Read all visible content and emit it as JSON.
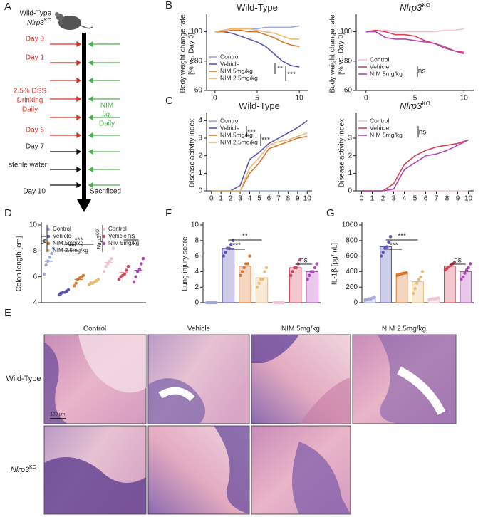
{
  "schematic": {
    "panel": "A",
    "strain": "Wild-Type",
    "strain_ko": "Nlrp3",
    "strain_ko_sup": "KO",
    "steps": [
      "Day 0",
      "Day 1",
      "2.5% DSS",
      "Drinking",
      "Daily",
      "Day 6",
      "Day 7",
      "sterile water",
      "Day 10"
    ],
    "treatment": [
      "NIM",
      "i.g.",
      "Daily"
    ],
    "endpoint": "Sacrificed"
  },
  "histology": {
    "panel": "E",
    "columns": [
      "Control",
      "Vehicle",
      "NIM 5mg/kg",
      "NIM 2.5mg/kg"
    ],
    "rows": [
      "Wild-Type",
      "Nlrp3"
    ],
    "row_superscript": "KO",
    "scale_bar": "100 μm"
  },
  "chart_data": [
    {
      "type": "line",
      "panel": "B",
      "title": "Wild-Type",
      "ylabel": [
        "Body weight change rate",
        "[% vs. Day 0]"
      ],
      "x": [
        0,
        1,
        2,
        3,
        4,
        5,
        6,
        7,
        8,
        9,
        10
      ],
      "xlim": [
        -1,
        11
      ],
      "xticks": [
        0,
        5,
        10
      ],
      "ylim": [
        60,
        110
      ],
      "yticks": [
        60,
        80,
        100
      ],
      "series": [
        {
          "name": "Control",
          "color": "#9fa8dc",
          "values": [
            100,
            101,
            102,
            102,
            102,
            102,
            103,
            103,
            103,
            103,
            104
          ]
        },
        {
          "name": "Vehicle",
          "color": "#5b55b5",
          "values": [
            100,
            100,
            99,
            97,
            95,
            93,
            90,
            85,
            80,
            77,
            76
          ]
        },
        {
          "name": "NIM 5mg/kg",
          "color": "#d9782d",
          "values": [
            100,
            100,
            101,
            101,
            100,
            100,
            98,
            96,
            93,
            91,
            90
          ]
        },
        {
          "name": "NIM 2.5mg/kg",
          "color": "#e8bb78",
          "values": [
            100,
            101,
            102,
            102,
            102,
            101,
            100,
            99,
            97,
            95,
            95
          ]
        }
      ],
      "annotations": [
        "**",
        "***"
      ]
    },
    {
      "type": "line",
      "title": "Nlrp3",
      "title_superscript": "KO",
      "ylabel": [
        "Body weight change rate",
        "[% vs. Day 0]"
      ],
      "x": [
        0,
        1,
        2,
        3,
        4,
        5,
        6,
        7,
        8,
        9,
        10
      ],
      "xlim": [
        -1,
        11
      ],
      "xticks": [
        0,
        5,
        10
      ],
      "ylim": [
        60,
        110
      ],
      "yticks": [
        60,
        80,
        100
      ],
      "series": [
        {
          "name": "Control",
          "color": "#f2c2d4",
          "values": [
            100,
            101,
            101,
            100,
            100,
            100,
            100,
            100,
            101,
            101,
            102
          ]
        },
        {
          "name": "Vehicle",
          "color": "#d3445a",
          "values": [
            100,
            101,
            100,
            98,
            98,
            97,
            94,
            92,
            89,
            87,
            86
          ]
        },
        {
          "name": "NIM 5mg/kg",
          "color": "#b146b8",
          "values": [
            100,
            100,
            96,
            95,
            95,
            94,
            93,
            92,
            90,
            87,
            85
          ]
        }
      ],
      "annotations": [
        "ns"
      ]
    },
    {
      "type": "line",
      "panel": "C",
      "title": "Wild-Type",
      "ylabel": [
        "Disease activity index"
      ],
      "x": [
        0,
        1,
        2,
        3,
        4,
        5,
        6,
        7,
        8,
        9,
        10
      ],
      "xlim": [
        -0.5,
        10.5
      ],
      "xticks": [
        0,
        1,
        2,
        3,
        4,
        5,
        6,
        7,
        8,
        9,
        10
      ],
      "ylim": [
        0,
        4.3
      ],
      "yticks": [
        0,
        1,
        2,
        3,
        4
      ],
      "series": [
        {
          "name": "Control",
          "color": "#9fa8dc",
          "values": [
            0,
            0,
            0,
            0,
            0,
            0,
            0,
            0,
            0,
            0,
            0
          ]
        },
        {
          "name": "Vehicle",
          "color": "#5b55b5",
          "values": [
            0,
            0,
            0,
            0.3,
            1.8,
            2.2,
            2.7,
            3.0,
            3.3,
            3.6,
            4.0
          ]
        },
        {
          "name": "NIM 5mg/kg",
          "color": "#d9782d",
          "values": [
            0,
            0,
            0,
            0,
            1.0,
            1.6,
            2.4,
            2.6,
            2.8,
            3.0,
            3.1
          ]
        },
        {
          "name": "NIM 2.5mg/kg",
          "color": "#e8bb78",
          "values": [
            0,
            0,
            0,
            0,
            1.3,
            1.9,
            2.6,
            2.8,
            2.9,
            3.1,
            3.3
          ]
        }
      ],
      "annotations": [
        "***",
        "***"
      ]
    },
    {
      "type": "line",
      "title": "Nlrp3",
      "title_superscript": "KO",
      "ylabel": [
        "Disease activity index"
      ],
      "x": [
        0,
        1,
        2,
        3,
        4,
        5,
        6,
        7,
        8,
        9,
        10
      ],
      "xlim": [
        -0.5,
        10.5
      ],
      "xticks": [
        0,
        1,
        2,
        3,
        4,
        5,
        6,
        7,
        8,
        9,
        10
      ],
      "ylim": [
        0,
        4.3
      ],
      "yticks": [
        0,
        1,
        2,
        3
      ],
      "series": [
        {
          "name": "Control",
          "color": "#f2c2d4",
          "values": [
            0,
            0,
            0,
            0,
            0,
            0,
            0,
            0,
            0,
            0,
            0
          ]
        },
        {
          "name": "Vehicle",
          "color": "#d3445a",
          "values": [
            0,
            0,
            0,
            0.4,
            1.5,
            2.0,
            2.3,
            2.5,
            2.6,
            2.7,
            2.9
          ]
        },
        {
          "name": "NIM 5mg/kg",
          "color": "#b146b8",
          "values": [
            0,
            0,
            0,
            0.1,
            1.2,
            1.6,
            2.0,
            2.1,
            2.3,
            2.6,
            2.9
          ]
        }
      ],
      "annotations": [
        "ns"
      ]
    },
    {
      "type": "dot",
      "panel": "D",
      "ylabel": [
        "Colon length [cm]"
      ],
      "ylim": [
        4,
        10
      ],
      "yticks": [
        4,
        6,
        8,
        10
      ],
      "group_labels": [
        "WT",
        "Nlrp3"
      ],
      "group_label_superscript": "KO",
      "series": [
        {
          "name": "Control",
          "color": "#9fa8dc",
          "mean": 7.2,
          "points": [
            6.2,
            6.9,
            7.2,
            7.5,
            7.8,
            8.2
          ]
        },
        {
          "name": "Vehicle",
          "color": "#5b55b5",
          "mean": 4.8,
          "points": [
            4.6,
            4.7,
            4.8,
            4.8,
            4.9,
            5.0
          ]
        },
        {
          "name": "NIM 5mg/kg",
          "color": "#d9782d",
          "mean": 5.8,
          "points": [
            5.3,
            5.5,
            5.8,
            5.9,
            6.0,
            6.1
          ]
        },
        {
          "name": "NIM 2.5mg/kg",
          "color": "#e8bb78",
          "mean": 5.6,
          "points": [
            5.4,
            5.5,
            5.5,
            5.6,
            5.7,
            5.8
          ]
        },
        {
          "name": "Control",
          "color": "#f2c2d4",
          "mean": 7.1,
          "points": [
            6.4,
            6.8,
            7.0,
            7.2,
            7.4,
            8.2
          ]
        },
        {
          "name": "Vehicle",
          "color": "#d3445a",
          "mean": 6.3,
          "points": [
            5.8,
            6.0,
            6.1,
            6.2,
            6.5,
            6.8
          ]
        },
        {
          "name": "NIM 5mg/kg",
          "color": "#b146b8",
          "mean": 6.5,
          "points": [
            5.6,
            6.0,
            6.4,
            6.6,
            7.0,
            7.4
          ]
        }
      ],
      "annotations": [
        "**",
        "***",
        "ns"
      ]
    },
    {
      "type": "bar",
      "panel": "F",
      "ylabel": [
        "Lung injury score"
      ],
      "ylim": [
        0,
        10
      ],
      "yticks": [
        0,
        2,
        4,
        6,
        8,
        10
      ],
      "series": [
        {
          "color": "#9fa8dc",
          "mean": 0,
          "points": [
            0,
            0,
            0,
            0,
            0,
            0
          ]
        },
        {
          "color": "#5b55b5",
          "mean": 7.0,
          "points": [
            6.0,
            6.5,
            7.0,
            7.0,
            7.5,
            8.0
          ]
        },
        {
          "color": "#d9782d",
          "mean": 4.7,
          "points": [
            3.5,
            4.0,
            4.5,
            5.0,
            5.0,
            6.0
          ]
        },
        {
          "color": "#e8bb78",
          "mean": 3.2,
          "points": [
            2.0,
            2.5,
            3.0,
            3.0,
            4.0,
            4.5
          ]
        },
        {
          "color": "#f2c2d4",
          "mean": 0,
          "points": [
            0,
            0,
            0,
            0,
            0,
            0
          ]
        },
        {
          "color": "#d3445a",
          "mean": 4.5,
          "points": [
            3.5,
            4.0,
            4.5,
            4.5,
            5.0,
            5.5
          ]
        },
        {
          "color": "#b146b8",
          "mean": 4.0,
          "points": [
            3.0,
            3.5,
            4.0,
            4.0,
            4.5,
            5.0
          ]
        }
      ],
      "annotations": [
        "**",
        "***",
        "ns"
      ]
    },
    {
      "type": "bar",
      "panel": "G",
      "ylabel": [
        "IL-1β [pg/mL]"
      ],
      "ylim": [
        0,
        1000
      ],
      "yticks": [
        0,
        200,
        400,
        600,
        800,
        1000
      ],
      "series": [
        {
          "color": "#9fa8dc",
          "mean": 50,
          "points": [
            30,
            40,
            50,
            50,
            60,
            70
          ]
        },
        {
          "color": "#5b55b5",
          "mean": 720,
          "points": [
            600,
            650,
            700,
            720,
            780,
            850
          ]
        },
        {
          "color": "#d9782d",
          "mean": 370,
          "points": [
            350,
            360,
            370,
            375,
            380,
            385
          ]
        },
        {
          "color": "#e8bb78",
          "mean": 270,
          "points": [
            120,
            180,
            250,
            300,
            330,
            400
          ]
        },
        {
          "color": "#f2c2d4",
          "mean": 50,
          "points": [
            40,
            45,
            50,
            50,
            55,
            60
          ]
        },
        {
          "color": "#d3445a",
          "mean": 470,
          "points": [
            420,
            440,
            460,
            480,
            500,
            520
          ]
        },
        {
          "color": "#b146b8",
          "mean": 400,
          "points": [
            300,
            330,
            380,
            420,
            450,
            500
          ]
        }
      ],
      "annotations": [
        "***",
        "***",
        "ns"
      ]
    }
  ]
}
